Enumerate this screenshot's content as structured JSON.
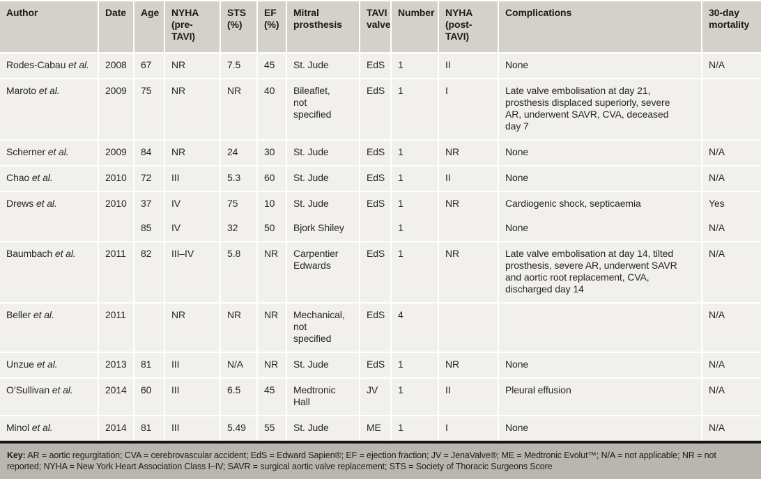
{
  "table": {
    "etal": "et al.",
    "columns": [
      "Author",
      "Date",
      "Age",
      "NYHA (pre-TAVI)",
      "STS (%)",
      "EF (%)",
      "Mitral prosthesis",
      "TAVI valve",
      "Number",
      "NYHA (post-TAVI)",
      "Complications",
      "30-day mortality"
    ],
    "rows": [
      {
        "author": "Rodes-Cabau",
        "date": "2008",
        "age": "67",
        "nyha_pre": "NR",
        "sts": "7.5",
        "ef": "45",
        "mitral": "St. Jude",
        "tavi": "EdS",
        "number": "1",
        "nyha_post": "II",
        "complications": "None",
        "mortality": "N/A"
      },
      {
        "author": "Maroto",
        "date": "2009",
        "age": "75",
        "nyha_pre": "NR",
        "sts": "NR",
        "ef": "40",
        "mitral": "Bileaflet, not specified",
        "tavi": "EdS",
        "number": "1",
        "nyha_post": "I",
        "complications": "Late valve embolisation at day 21, prosthesis displaced superiorly, severe AR, underwent SAVR, CVA, deceased day 7",
        "mortality": ""
      },
      {
        "author": "Scherner",
        "date": "2009",
        "age": "84",
        "nyha_pre": "NR",
        "sts": "24",
        "ef": "30",
        "mitral": "St. Jude",
        "tavi": "EdS",
        "number": "1",
        "nyha_post": "NR",
        "complications": "None",
        "mortality": "N/A"
      },
      {
        "author": "Chao",
        "date": "2010",
        "age": "72",
        "nyha_pre": "III",
        "sts": "5.3",
        "ef": "60",
        "mitral": "St. Jude",
        "tavi": "EdS",
        "number": "1",
        "nyha_post": "II",
        "complications": "None",
        "mortality": "N/A"
      },
      {
        "author": "Drews",
        "date": "2010",
        "age": [
          "37",
          "85"
        ],
        "nyha_pre": [
          "IV",
          "IV"
        ],
        "sts": [
          "75",
          "32"
        ],
        "ef": [
          "10",
          "50"
        ],
        "mitral": [
          "St. Jude",
          "Bjork Shiley"
        ],
        "tavi": [
          "EdS",
          ""
        ],
        "number": [
          "1",
          "1"
        ],
        "nyha_post": [
          "NR",
          ""
        ],
        "complications": [
          "Cardiogenic shock, septicaemia",
          "None"
        ],
        "mortality": [
          "Yes",
          "N/A"
        ]
      },
      {
        "author": "Baumbach",
        "date": "2011",
        "age": "82",
        "nyha_pre": "III–IV",
        "sts": "5.8",
        "ef": "NR",
        "mitral": "Carpentier Edwards",
        "tavi": "EdS",
        "number": "1",
        "nyha_post": "NR",
        "complications": "Late valve embolisation at day 14, tilted prosthesis, severe AR, underwent SAVR and aortic root replacement, CVA, discharged day 14",
        "mortality": "N/A"
      },
      {
        "author": "Beller",
        "date": "2011",
        "age": "",
        "nyha_pre": "NR",
        "sts": "NR",
        "ef": "NR",
        "mitral": "Mechanical, not specified",
        "tavi": "EdS",
        "number": "4",
        "nyha_post": "",
        "complications": "",
        "mortality": "N/A"
      },
      {
        "author": "Unzue",
        "date": "2013",
        "age": "81",
        "nyha_pre": "III",
        "sts": "N/A",
        "ef": "NR",
        "mitral": "St. Jude",
        "tavi": "EdS",
        "number": "1",
        "nyha_post": "NR",
        "complications": "None",
        "mortality": "N/A"
      },
      {
        "author": "O’Sullivan",
        "date": "2014",
        "age": "60",
        "nyha_pre": "III",
        "sts": "6.5",
        "ef": "45",
        "mitral": "Medtronic Hall",
        "tavi": "JV",
        "number": "1",
        "nyha_post": "II",
        "complications": "Pleural effusion",
        "mortality": "N/A"
      },
      {
        "author": "Minol",
        "date": "2014",
        "age": "81",
        "nyha_pre": "III",
        "sts": "5.49",
        "ef": "55",
        "mitral": "St. Jude",
        "tavi": "ME",
        "number": "1",
        "nyha_post": "I",
        "complications": "None",
        "mortality": "N/A"
      }
    ]
  },
  "footer": {
    "key_label": "Key:",
    "key_text": " AR = aortic regurgitation; CVA = cerebrovascular accident; EdS = Edward Sapien®; EF = ejection fraction; JV = JenaValve®; ME = Medtronic Evolut™; N/A = not applicable; NR = not reported; NYHA = New York Heart Association Class I–IV; SAVR = surgical aortic valve replacement; STS = Society of Thoracic Surgeons Score"
  },
  "colors": {
    "page_bg": "#b9b6b0",
    "header_bg": "#d4d1ca",
    "row_bg": "#f1f0ed",
    "separator": "#ffffff",
    "text": "#262523",
    "rule": "#141414"
  }
}
